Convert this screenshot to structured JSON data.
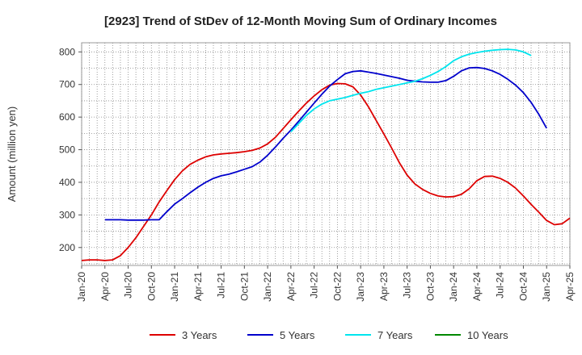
{
  "chart_data": {
    "type": "line",
    "title": "[2923]  Trend of StDev of 12-Month Moving Sum of Ordinary Incomes",
    "xlabel": "",
    "ylabel": "Amount (million yen)",
    "ylim": [
      145,
      828
    ],
    "yticks": [
      200,
      300,
      400,
      500,
      600,
      700,
      800
    ],
    "x_start": "Jan-20",
    "x_tick_labels": [
      "Jan-20",
      "Apr-20",
      "Jul-20",
      "Oct-20",
      "Jan-21",
      "Apr-21",
      "Jul-21",
      "Oct-21",
      "Jan-22",
      "Apr-22",
      "Jul-22",
      "Oct-22",
      "Jan-23",
      "Apr-23",
      "Jul-23",
      "Oct-23",
      "Jan-24",
      "Apr-24",
      "Jul-24",
      "Oct-24",
      "Jan-25",
      "Apr-25"
    ],
    "grid": true,
    "legend_position": "bottom",
    "series": [
      {
        "name": "3 Years",
        "color": "#dd0000",
        "start_month": 0,
        "values": [
          160,
          162,
          162,
          160,
          162,
          175,
          200,
          230,
          265,
          300,
          340,
          375,
          408,
          435,
          455,
          468,
          478,
          484,
          487,
          489,
          491,
          494,
          498,
          505,
          518,
          538,
          565,
          592,
          618,
          643,
          665,
          684,
          698,
          703,
          702,
          693,
          668,
          632,
          590,
          548,
          505,
          460,
          422,
          395,
          378,
          366,
          358,
          355,
          356,
          363,
          380,
          405,
          418,
          419,
          412,
          400,
          382,
          358,
          332,
          308,
          283,
          270,
          273,
          290
        ]
      },
      {
        "name": "5 Years",
        "color": "#0000cc",
        "start_month": 3,
        "values": [
          285,
          285,
          285,
          284,
          284,
          284,
          285,
          285,
          310,
          333,
          350,
          368,
          385,
          400,
          412,
          420,
          425,
          432,
          440,
          448,
          462,
          483,
          508,
          535,
          560,
          587,
          615,
          643,
          670,
          695,
          715,
          733,
          740,
          742,
          738,
          734,
          729,
          724,
          719,
          713,
          710,
          708,
          707,
          707,
          712,
          725,
          742,
          751,
          752,
          749,
          742,
          731,
          716,
          698,
          675,
          645,
          608,
          566
        ]
      },
      {
        "name": "7 Years",
        "color": "#00e5ee",
        "start_month": 27,
        "values": [
          555,
          580,
          605,
          625,
          640,
          650,
          655,
          660,
          667,
          673,
          678,
          685,
          690,
          695,
          700,
          705,
          710,
          718,
          728,
          740,
          755,
          773,
          785,
          793,
          798,
          802,
          805,
          807,
          808,
          806,
          800,
          789
        ]
      },
      {
        "name": "10 Years",
        "color": "#008800",
        "start_month": 0,
        "values": []
      }
    ]
  }
}
